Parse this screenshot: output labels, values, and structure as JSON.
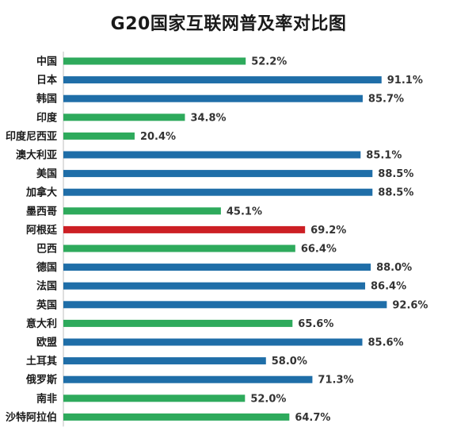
{
  "chart_data": {
    "type": "bar",
    "orientation": "horizontal",
    "title": "G20国家互联网普及率对比图",
    "xlim": [
      0,
      100
    ],
    "grid": false,
    "categories": [
      "中国",
      "日本",
      "韩国",
      "印度",
      "印度尼西亚",
      "澳大利亚",
      "美国",
      "加拿大",
      "墨西哥",
      "阿根廷",
      "巴西",
      "德国",
      "法国",
      "英国",
      "意大利",
      "欧盟",
      "土耳其",
      "俄罗斯",
      "南非",
      "沙特阿拉伯"
    ],
    "values": [
      52.2,
      91.1,
      85.7,
      34.8,
      20.4,
      85.1,
      88.5,
      88.5,
      45.1,
      69.2,
      66.4,
      88.0,
      86.4,
      92.6,
      65.6,
      85.6,
      58.0,
      71.3,
      52.0,
      64.7
    ],
    "value_labels": [
      "52.2%",
      "91.1%",
      "85.7%",
      "34.8%",
      "20.4%",
      "85.1%",
      "88.5%",
      "88.5%",
      "45.1%",
      "69.2%",
      "66.4%",
      "88.0%",
      "86.4%",
      "92.6%",
      "65.6%",
      "85.6%",
      "58.0%",
      "71.3%",
      "52.0%",
      "64.7%"
    ],
    "bar_colors": [
      "#2eaa5c",
      "#1f6ea8",
      "#1f6ea8",
      "#2eaa5c",
      "#2eaa5c",
      "#1f6ea8",
      "#1f6ea8",
      "#1f6ea8",
      "#2eaa5c",
      "#cc1f24",
      "#2eaa5c",
      "#1f6ea8",
      "#1f6ea8",
      "#1f6ea8",
      "#2eaa5c",
      "#1f6ea8",
      "#1f6ea8",
      "#1f6ea8",
      "#2eaa5c",
      "#2eaa5c"
    ]
  }
}
